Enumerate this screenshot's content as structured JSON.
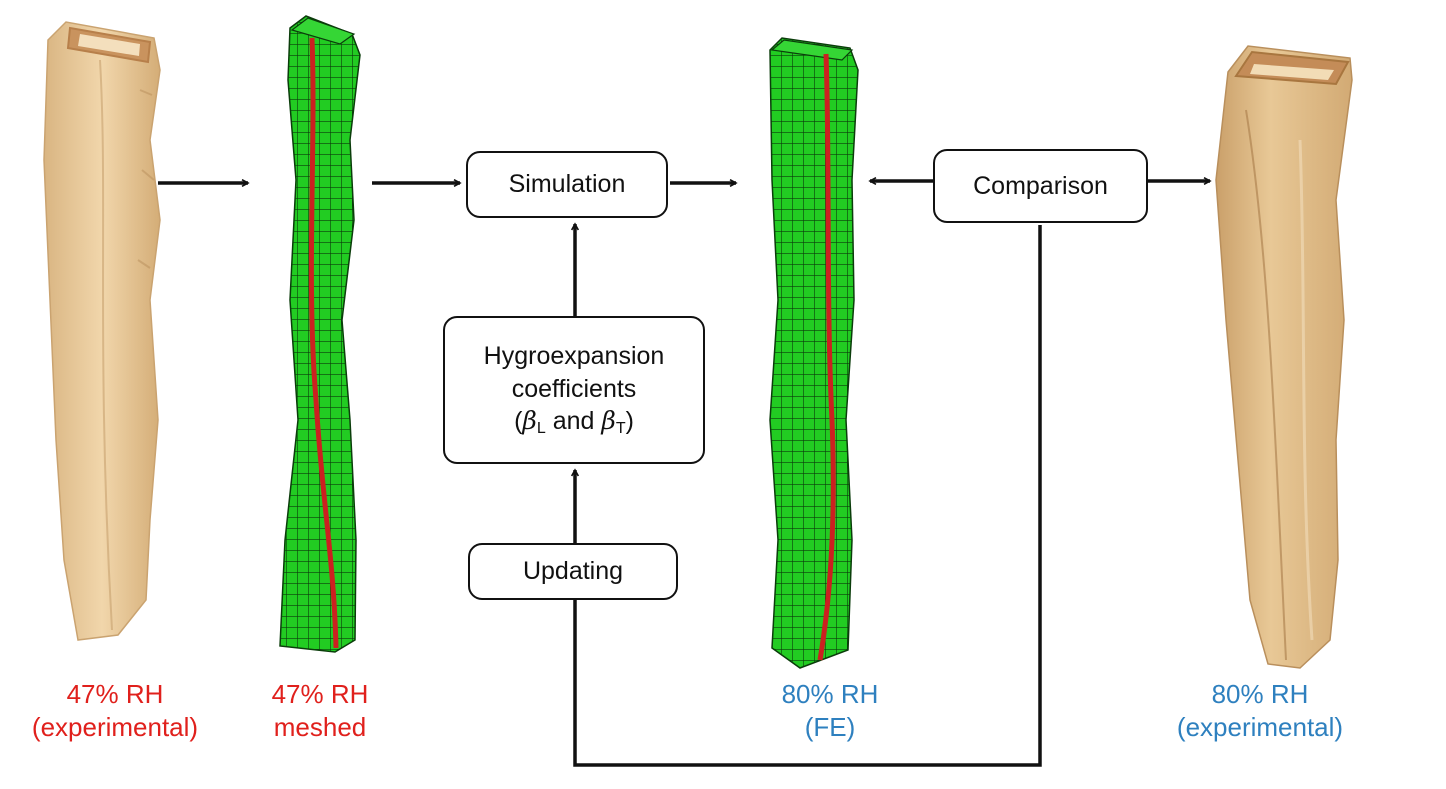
{
  "boxes": {
    "simulation": "Simulation",
    "comparison": "Comparison",
    "updating": "Updating",
    "hygro_line1": "Hygroexpansion",
    "hygro_line2": "coefficients",
    "hygro_open": "(",
    "hygro_beta": "β",
    "hygro_sub_l": "L",
    "hygro_and": " and ",
    "hygro_sub_t": "T",
    "hygro_close": ")"
  },
  "captions": {
    "c1_line1": "47% RH",
    "c1_line2": "(experimental)",
    "c2_line1": "47% RH",
    "c2_line2": "meshed",
    "c3_line1": "80% RH",
    "c3_line2": "(FE)",
    "c4_line1": "80% RH",
    "c4_line2": "(experimental)"
  },
  "colors": {
    "experimental_47": "#e0201c",
    "experimental_80": "#2e80bf",
    "fiber_tan": "#e9c999",
    "mesh_green": "#22cc22",
    "mesh_center_line": "#cc2020"
  }
}
